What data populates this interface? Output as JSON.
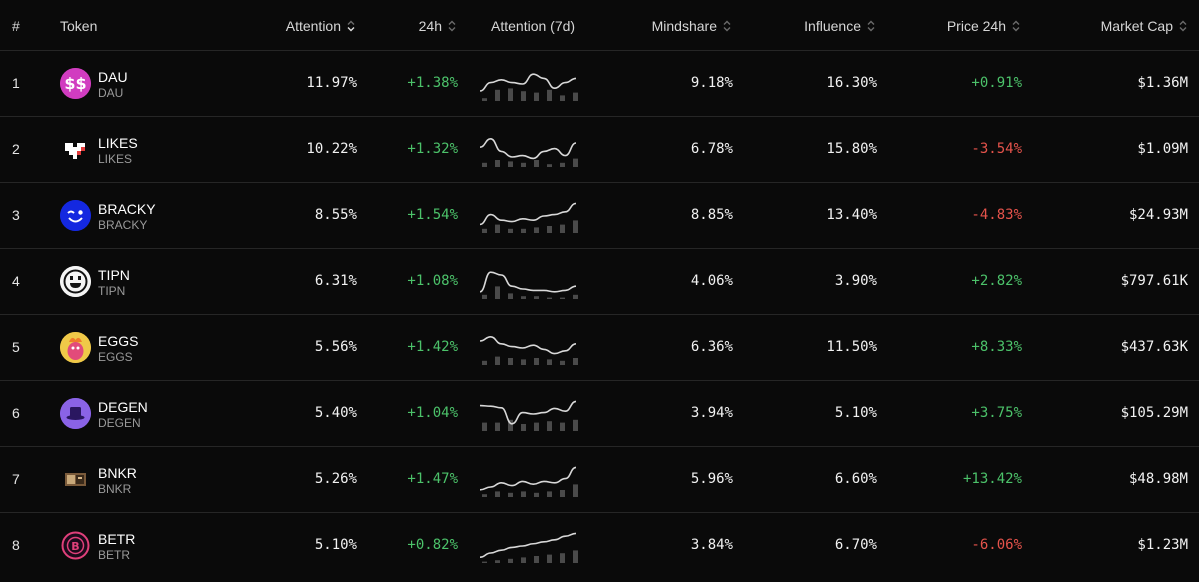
{
  "header": {
    "rank": "#",
    "token": "Token",
    "attention": "Attention",
    "change_24h": "24h",
    "attention_7d": "Attention (7d)",
    "mindshare": "Mindshare",
    "influence": "Influence",
    "price_24h": "Price 24h",
    "market_cap": "Market Cap"
  },
  "rows": [
    {
      "rank": "1",
      "name": "DAU",
      "symbol": "DAU",
      "attention": "11.97%",
      "change_24h": "+1.38%",
      "mindshare": "9.18%",
      "influence": "16.30%",
      "price_24h": "+0.91%",
      "price_dir": "pos",
      "market_cap": "$1.36M",
      "icon": "dollar-coin-icon",
      "spark": [
        0.25,
        0.55,
        0.65,
        0.55,
        0.5,
        0.85,
        0.7,
        0.35,
        0.55,
        0.7
      ],
      "bars": [
        0.2,
        0.8,
        0.9,
        0.7,
        0.6,
        0.8,
        0.4,
        0.6
      ]
    },
    {
      "rank": "2",
      "name": "LIKES",
      "symbol": "LIKES",
      "attention": "10.22%",
      "change_24h": "+1.32%",
      "mindshare": "6.78%",
      "influence": "15.80%",
      "price_24h": "-3.54%",
      "price_dir": "neg",
      "market_cap": "$1.09M",
      "icon": "pixel-heart-icon",
      "spark": [
        0.6,
        0.9,
        0.45,
        0.25,
        0.3,
        0.2,
        0.45,
        0.55,
        0.3,
        0.75
      ],
      "bars": [
        0.3,
        0.5,
        0.4,
        0.3,
        0.5,
        0.2,
        0.3,
        0.6
      ]
    },
    {
      "rank": "3",
      "name": "BRACKY",
      "symbol": "BRACKY",
      "attention": "8.55%",
      "change_24h": "+1.54%",
      "mindshare": "8.85%",
      "influence": "13.40%",
      "price_24h": "-4.83%",
      "price_dir": "neg",
      "market_cap": "$24.93M",
      "icon": "winking-face-icon",
      "spark": [
        0.2,
        0.55,
        0.35,
        0.3,
        0.4,
        0.35,
        0.5,
        0.55,
        0.65,
        0.95
      ],
      "bars": [
        0.3,
        0.6,
        0.3,
        0.3,
        0.4,
        0.5,
        0.6,
        0.9
      ]
    },
    {
      "rank": "4",
      "name": "TIPN",
      "symbol": "TIPN",
      "attention": "6.31%",
      "change_24h": "+1.08%",
      "mindshare": "4.06%",
      "influence": "3.90%",
      "price_24h": "+2.82%",
      "price_dir": "pos",
      "market_cap": "$797.61K",
      "icon": "smiley-face-icon",
      "spark": [
        0.15,
        0.85,
        0.75,
        0.35,
        0.25,
        0.2,
        0.2,
        0.15,
        0.2,
        0.35
      ],
      "bars": [
        0.3,
        0.9,
        0.4,
        0.2,
        0.2,
        0.1,
        0.1,
        0.3
      ]
    },
    {
      "rank": "5",
      "name": "EGGS",
      "symbol": "EGGS",
      "attention": "5.56%",
      "change_24h": "+1.42%",
      "mindshare": "6.36%",
      "influence": "11.50%",
      "price_24h": "+8.33%",
      "price_dir": "pos",
      "market_cap": "$437.63K",
      "icon": "eggs-character-icon",
      "spark": [
        0.75,
        0.9,
        0.65,
        0.55,
        0.5,
        0.6,
        0.45,
        0.3,
        0.4,
        0.65
      ],
      "bars": [
        0.3,
        0.6,
        0.5,
        0.4,
        0.5,
        0.4,
        0.3,
        0.5
      ]
    },
    {
      "rank": "6",
      "name": "DEGEN",
      "symbol": "DEGEN",
      "attention": "5.40%",
      "change_24h": "+1.04%",
      "mindshare": "3.94%",
      "influence": "5.10%",
      "price_24h": "+3.75%",
      "price_dir": "pos",
      "market_cap": "$105.29M",
      "icon": "purple-hat-icon",
      "spark": [
        0.8,
        0.78,
        0.72,
        0.15,
        0.55,
        0.5,
        0.55,
        0.7,
        0.6,
        0.95
      ],
      "bars": [
        0.6,
        0.6,
        0.8,
        0.5,
        0.6,
        0.7,
        0.6,
        0.8
      ]
    },
    {
      "rank": "7",
      "name": "BNKR",
      "symbol": "BNKR",
      "attention": "5.26%",
      "change_24h": "+1.47%",
      "mindshare": "5.96%",
      "influence": "6.60%",
      "price_24h": "+13.42%",
      "price_dir": "pos",
      "market_cap": "$48.98M",
      "icon": "bank-robot-icon",
      "spark": [
        0.15,
        0.25,
        0.4,
        0.3,
        0.45,
        0.35,
        0.45,
        0.4,
        0.55,
        0.95
      ],
      "bars": [
        0.2,
        0.4,
        0.3,
        0.4,
        0.3,
        0.4,
        0.5,
        0.9
      ]
    },
    {
      "rank": "8",
      "name": "BETR",
      "symbol": "BETR",
      "attention": "5.10%",
      "change_24h": "+0.82%",
      "mindshare": "3.84%",
      "influence": "6.70%",
      "price_24h": "-6.06%",
      "price_dir": "neg",
      "market_cap": "$1.23M",
      "icon": "betr-coin-icon",
      "spark": [
        0.1,
        0.25,
        0.35,
        0.45,
        0.5,
        0.58,
        0.65,
        0.72,
        0.85,
        0.95
      ],
      "bars": [
        0.1,
        0.2,
        0.3,
        0.4,
        0.5,
        0.6,
        0.7,
        0.9
      ]
    }
  ]
}
